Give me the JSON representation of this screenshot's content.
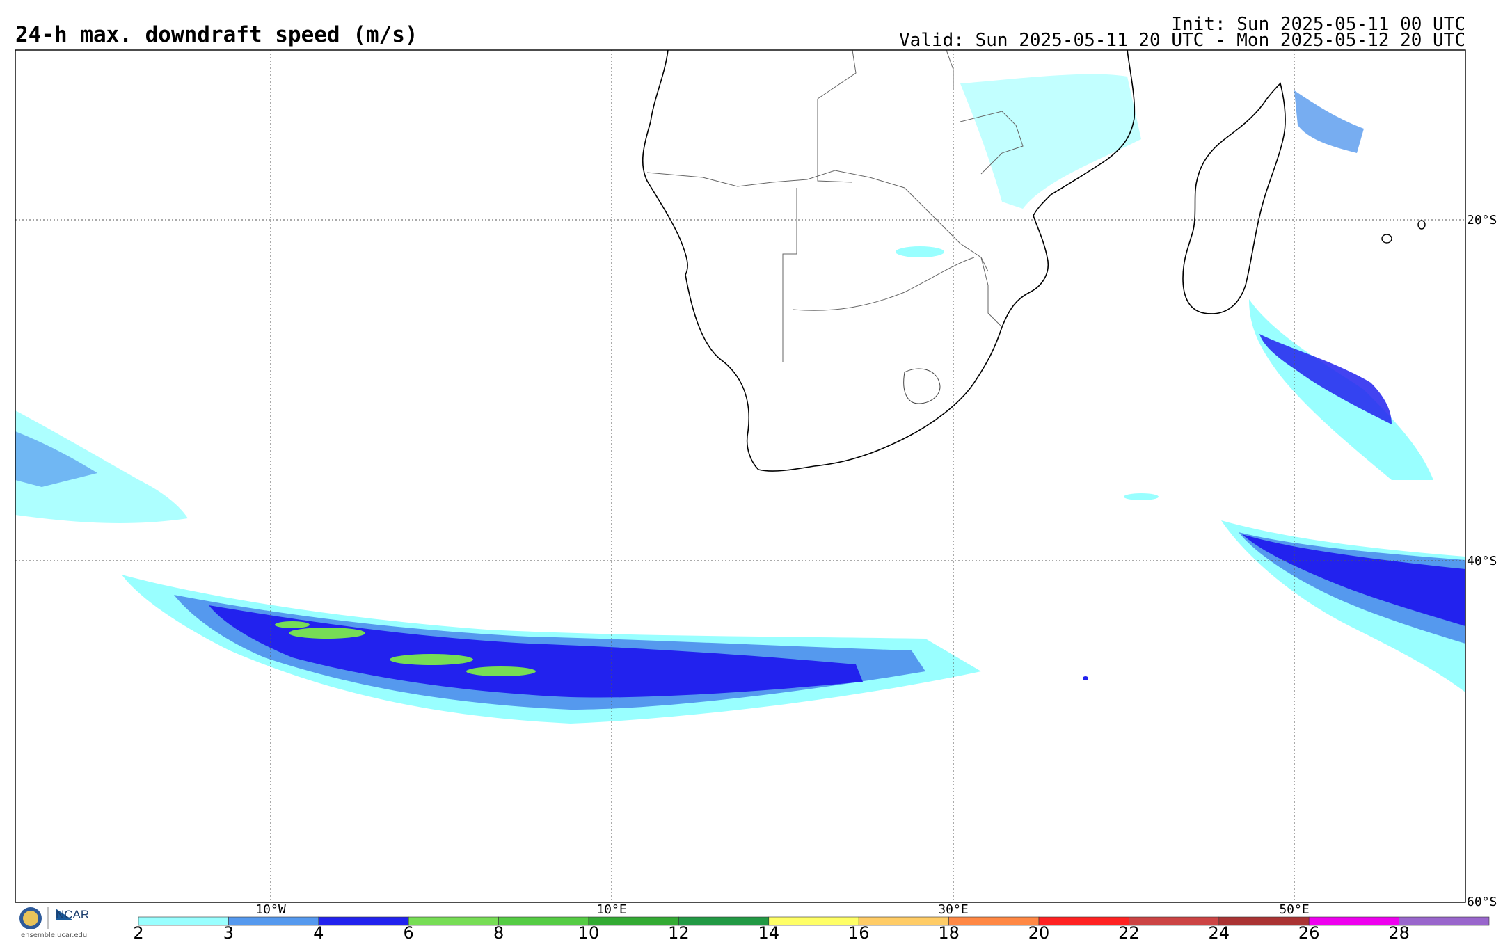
{
  "header": {
    "title": "24-h max. downdraft speed (m/s)",
    "init": "Init: Sun 2025-05-11 00 UTC",
    "valid": "Valid: Sun 2025-05-11 20 UTC - Mon 2025-05-12 20 UTC"
  },
  "map": {
    "lon_labels": [
      "10°W",
      "10°E",
      "30°E",
      "50°E"
    ],
    "lat_labels": [
      "20°S",
      "40°S",
      "60°S"
    ]
  },
  "colorbar": {
    "ticks": [
      "2",
      "3",
      "4",
      "6",
      "8",
      "10",
      "12",
      "14",
      "16",
      "18",
      "20",
      "22",
      "24",
      "26",
      "28"
    ],
    "colors": [
      "#99ffff",
      "#5599ee",
      "#2222ee",
      "#77dd55",
      "#55cc44",
      "#33aa33",
      "#229944",
      "#ffff66",
      "#ffcc66",
      "#ff8844",
      "#ff2222",
      "#cc4444",
      "#aa3333",
      "#ee00ee",
      "#9966cc"
    ]
  },
  "footer": {
    "logo_text": "NCAR",
    "url": "ensemble.ucar.edu"
  }
}
